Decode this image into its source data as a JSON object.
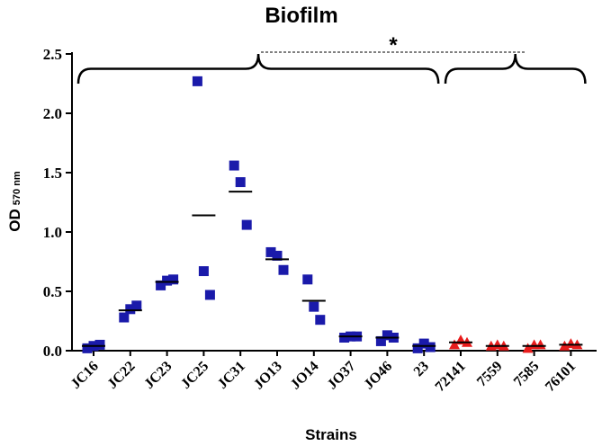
{
  "chart_data": {
    "type": "scatter",
    "title": "Biofilm",
    "xlabel": "Strains",
    "ylabel": "OD",
    "ylabel_sub": "570 nm",
    "ylim": [
      0,
      2.5
    ],
    "yticks": [
      "0.0",
      "0.5",
      "1.0",
      "1.5",
      "2.0",
      "2.5"
    ],
    "ytick_values": [
      0,
      0.5,
      1.0,
      1.5,
      2.0,
      2.5
    ],
    "categories": [
      "JC16",
      "JC22",
      "JC23",
      "JC25",
      "JC31",
      "JO13",
      "JO14",
      "JO37",
      "JO46",
      "23",
      "72141",
      "7559",
      "7585",
      "76101"
    ],
    "series": [
      {
        "color": "#1a1aaa",
        "marker": "square",
        "points": [
          {
            "category": "JC16",
            "values": [
              0.02,
              0.04,
              0.05
            ],
            "mean": 0.04
          },
          {
            "category": "JC22",
            "values": [
              0.28,
              0.35,
              0.38
            ],
            "mean": 0.34
          },
          {
            "category": "JC23",
            "values": [
              0.55,
              0.59,
              0.6
            ],
            "mean": 0.58
          },
          {
            "category": "JC25",
            "values": [
              2.27,
              0.67,
              0.47
            ],
            "mean": 1.14
          },
          {
            "category": "JC31",
            "values": [
              1.56,
              1.42,
              1.06
            ],
            "mean": 1.34
          },
          {
            "category": "JO13",
            "values": [
              0.83,
              0.8,
              0.68
            ],
            "mean": 0.77
          },
          {
            "category": "JO14",
            "values": [
              0.6,
              0.37,
              0.26
            ],
            "mean": 0.42
          },
          {
            "category": "JO37",
            "values": [
              0.11,
              0.12,
              0.12
            ],
            "mean": 0.12
          },
          {
            "category": "JO46",
            "values": [
              0.08,
              0.13,
              0.11
            ],
            "mean": 0.11
          },
          {
            "category": "23",
            "values": [
              0.02,
              0.06,
              0.03
            ],
            "mean": 0.04
          }
        ]
      },
      {
        "color": "#e81c1c",
        "marker": "triangle",
        "points": [
          {
            "category": "72141",
            "values": [
              0.05,
              0.09,
              0.07
            ],
            "mean": 0.07
          },
          {
            "category": "7559",
            "values": [
              0.04,
              0.05,
              0.04
            ],
            "mean": 0.04
          },
          {
            "category": "7585",
            "values": [
              0.02,
              0.05,
              0.05
            ],
            "mean": 0.04
          },
          {
            "category": "76101",
            "values": [
              0.04,
              0.06,
              0.05
            ],
            "mean": 0.05
          }
        ]
      }
    ],
    "group_brackets": [
      {
        "from": "JC16",
        "to": "23"
      },
      {
        "from": "72141",
        "to": "76101"
      }
    ],
    "annotation": "*"
  }
}
